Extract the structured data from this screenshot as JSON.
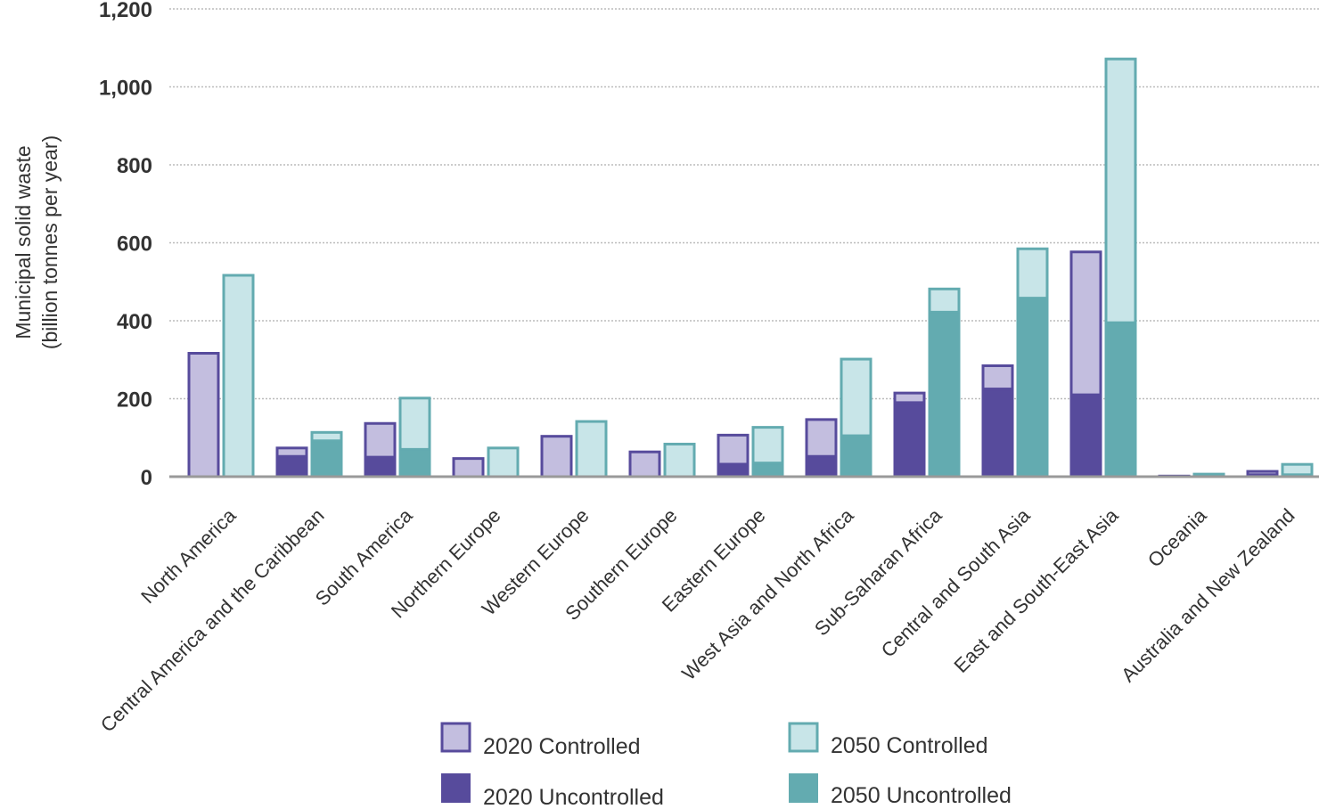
{
  "chart_data": {
    "type": "bar",
    "ylabel_line1": "Municipal solid waste",
    "ylabel_line2": "(billion tonnes per year)",
    "ylim": [
      0,
      1200
    ],
    "yticks": [
      0,
      200,
      400,
      600,
      800,
      1000,
      1200
    ],
    "ytick_labels": [
      "0",
      "200",
      "400",
      "600",
      "800",
      "1,000",
      "1,200"
    ],
    "grid": "horizontal dotted",
    "legend_position": "bottom-center",
    "categories": [
      "North America",
      "Central America and the Caribbean",
      "South America",
      "Northern Europe",
      "Western Europe",
      "Southern Europe",
      "Eastern Europe",
      "West Asia and North Africa",
      "Sub-Saharan Africa",
      "Central and South Asia",
      "East and South-East Asia",
      "Oceania",
      "Australia and New Zealand"
    ],
    "series": [
      {
        "name": "2020 Controlled",
        "values": [
          320,
          25,
          90,
          50,
          107,
          67,
          78,
          98,
          28,
          63,
          370,
          3,
          12
        ]
      },
      {
        "name": "2020 Uncontrolled",
        "values": [
          0,
          52,
          50,
          0,
          0,
          0,
          32,
          52,
          190,
          225,
          210,
          5,
          5
        ]
      },
      {
        "name": "2050 Controlled",
        "values": [
          520,
          25,
          135,
          77,
          145,
          87,
          95,
          200,
          63,
          130,
          680,
          5,
          30
        ]
      },
      {
        "name": "2050 Uncontrolled",
        "values": [
          0,
          92,
          70,
          0,
          0,
          0,
          35,
          105,
          422,
          458,
          395,
          5,
          5
        ]
      }
    ],
    "colors": {
      "c2020_controlled_fill": "#c3bedf",
      "c2020_controlled_border": "#574b9c",
      "c2020_uncontrolled": "#574b9c",
      "c2050_controlled_fill": "#c8e5e8",
      "c2050_controlled_border": "#63abb0",
      "c2050_uncontrolled": "#63abb0",
      "grid": "#bbbbbb",
      "axis": "#999999"
    }
  }
}
